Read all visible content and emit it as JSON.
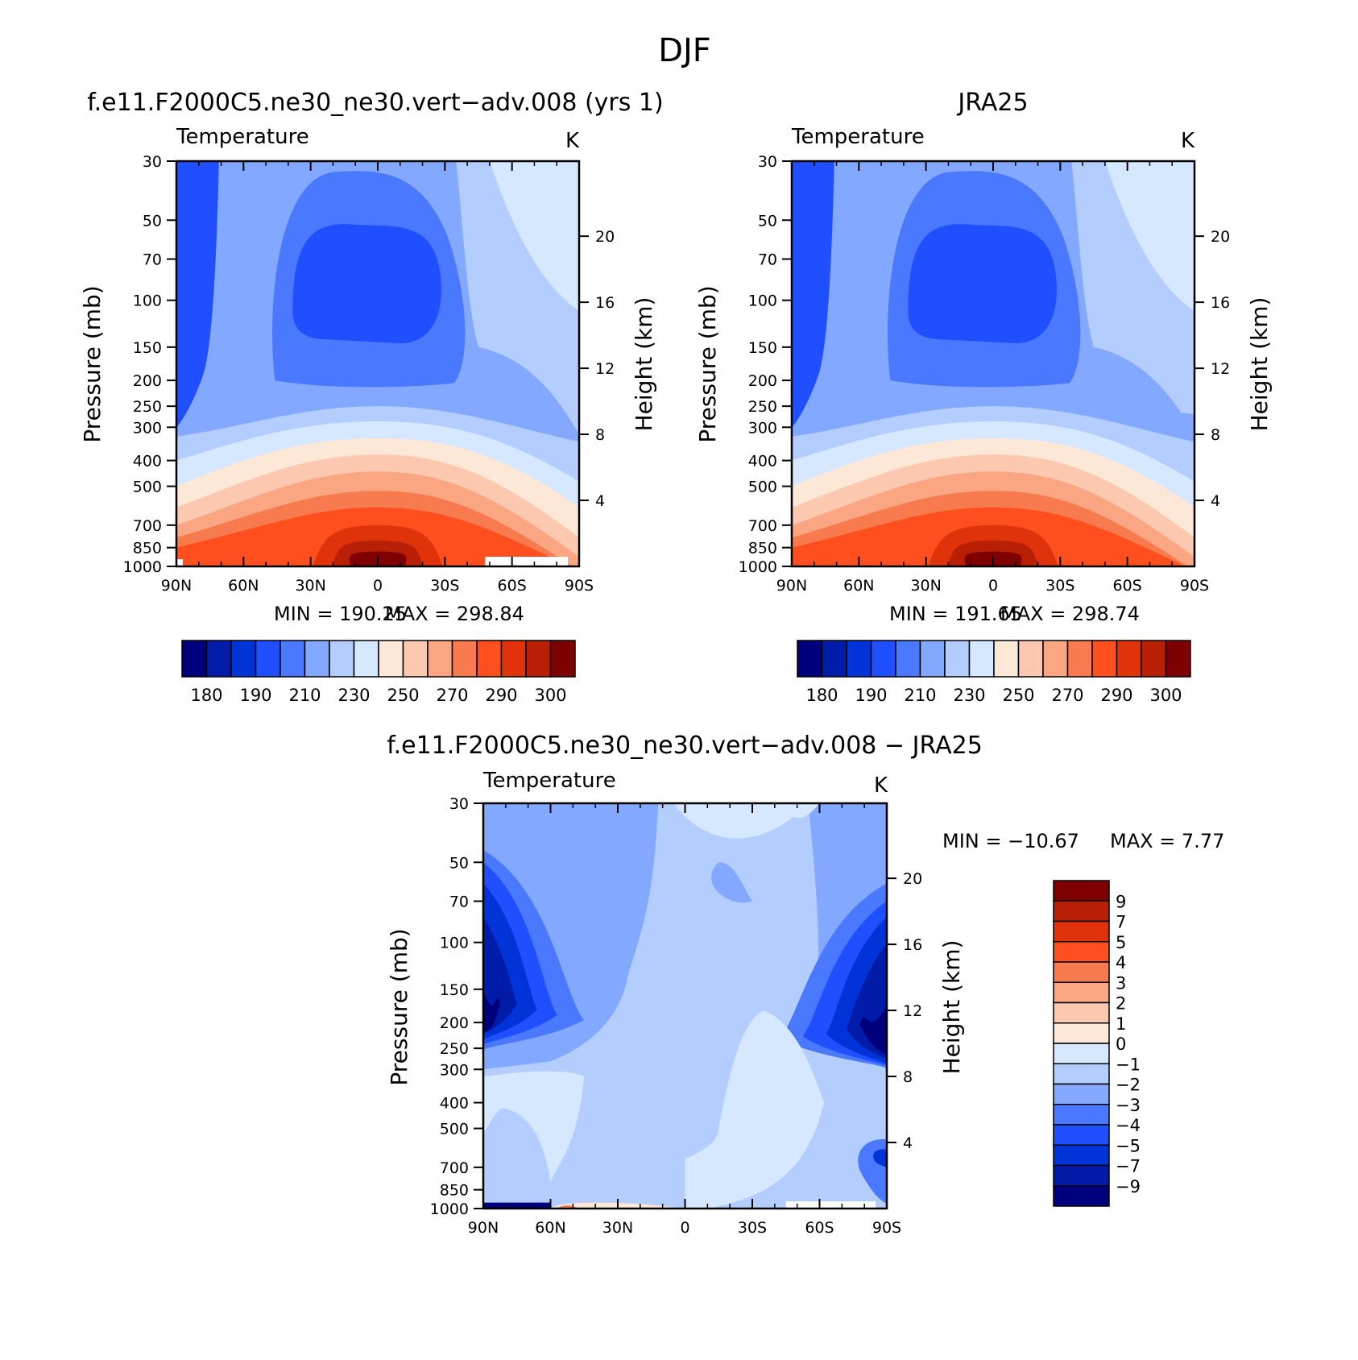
{
  "figure": {
    "title": "DJF"
  },
  "palette": {
    "temperature": [
      "#00007f",
      "#001ca8",
      "#0034d8",
      "#1f4fff",
      "#4a78ff",
      "#82a8ff",
      "#b3cdff",
      "#d5e8ff",
      "#fde7d6",
      "#fcc9b0",
      "#faa682",
      "#f77b4e",
      "#ff4f1e",
      "#e0330c",
      "#b81f05",
      "#7f0000"
    ],
    "difference": [
      "#00007f",
      "#001ca8",
      "#0034d8",
      "#1f4fff",
      "#4a78ff",
      "#82a8ff",
      "#b3cdff",
      "#d5e8ff",
      "#fde7d6",
      "#fcc9b0",
      "#faa682",
      "#f77b4e",
      "#ff4f1e",
      "#e0330c",
      "#b81f05",
      "#7f0000"
    ]
  },
  "chart_data": [
    {
      "type": "heatmap",
      "panel": "model",
      "title": "f.e11.F2000C5.ne30_ne30.vert−adv.008 (yrs 1)",
      "variable": "Temperature",
      "units": "K",
      "xlabel": "",
      "ylabel": "Pressure (mb)",
      "y2label": "Height (km)",
      "x_ticks": [
        "90N",
        "60N",
        "30N",
        "0",
        "30S",
        "60S",
        "90S"
      ],
      "x_values": [
        90,
        60,
        30,
        0,
        -30,
        -60,
        -90
      ],
      "y_ticks": [
        30,
        50,
        70,
        100,
        150,
        200,
        250,
        300,
        400,
        500,
        700,
        850,
        1000
      ],
      "y2_ticks": [
        20,
        16,
        12,
        8,
        4
      ],
      "ylim": [
        1000,
        30
      ],
      "min_label": "MIN = 190.25",
      "max_label": "MAX = 298.84",
      "min": 190.25,
      "max": 298.84,
      "colorbar_levels": [
        175,
        180,
        185,
        190,
        195,
        200,
        205,
        210,
        215,
        220,
        225,
        230,
        235,
        240,
        245,
        250,
        255,
        260,
        265,
        270,
        275,
        280,
        285,
        290,
        295,
        300
      ],
      "colorbar_labels": [
        "180",
        "190",
        "210",
        "230",
        "250",
        "270",
        "290",
        "300"
      ]
    },
    {
      "type": "heatmap",
      "panel": "obs",
      "title": "JRA25",
      "variable": "Temperature",
      "units": "K",
      "xlabel": "",
      "ylabel": "Pressure (mb)",
      "y2label": "Height (km)",
      "x_ticks": [
        "90N",
        "60N",
        "30N",
        "0",
        "30S",
        "60S",
        "90S"
      ],
      "x_values": [
        90,
        60,
        30,
        0,
        -30,
        -60,
        -90
      ],
      "y_ticks": [
        30,
        50,
        70,
        100,
        150,
        200,
        250,
        300,
        400,
        500,
        700,
        850,
        1000
      ],
      "y2_ticks": [
        20,
        16,
        12,
        8,
        4
      ],
      "ylim": [
        1000,
        30
      ],
      "min_label": "MIN = 191.65",
      "max_label": "MAX = 298.74",
      "min": 191.65,
      "max": 298.74,
      "colorbar_labels": [
        "180",
        "190",
        "210",
        "230",
        "250",
        "270",
        "290",
        "300"
      ]
    },
    {
      "type": "heatmap",
      "panel": "difference",
      "title": "f.e11.F2000C5.ne30_ne30.vert−adv.008 − JRA25",
      "variable": "Temperature",
      "units": "K",
      "xlabel": "",
      "ylabel": "Pressure (mb)",
      "y2label": "Height (km)",
      "x_ticks": [
        "90N",
        "60N",
        "30N",
        "0",
        "30S",
        "60S",
        "90S"
      ],
      "x_values": [
        90,
        60,
        30,
        0,
        -30,
        -60,
        -90
      ],
      "y_ticks": [
        30,
        50,
        70,
        100,
        150,
        200,
        250,
        300,
        400,
        500,
        700,
        850,
        1000
      ],
      "y2_ticks": [
        20,
        16,
        12,
        8,
        4
      ],
      "ylim": [
        1000,
        30
      ],
      "min_label": "MIN = −10.67",
      "max_label": "MAX = 7.77",
      "min": -10.67,
      "max": 7.77,
      "colorbar_labels": [
        "9",
        "7",
        "5",
        "4",
        "3",
        "2",
        "1",
        "0",
        "−1",
        "−2",
        "−3",
        "−4",
        "−5",
        "−7",
        "−9"
      ]
    }
  ]
}
